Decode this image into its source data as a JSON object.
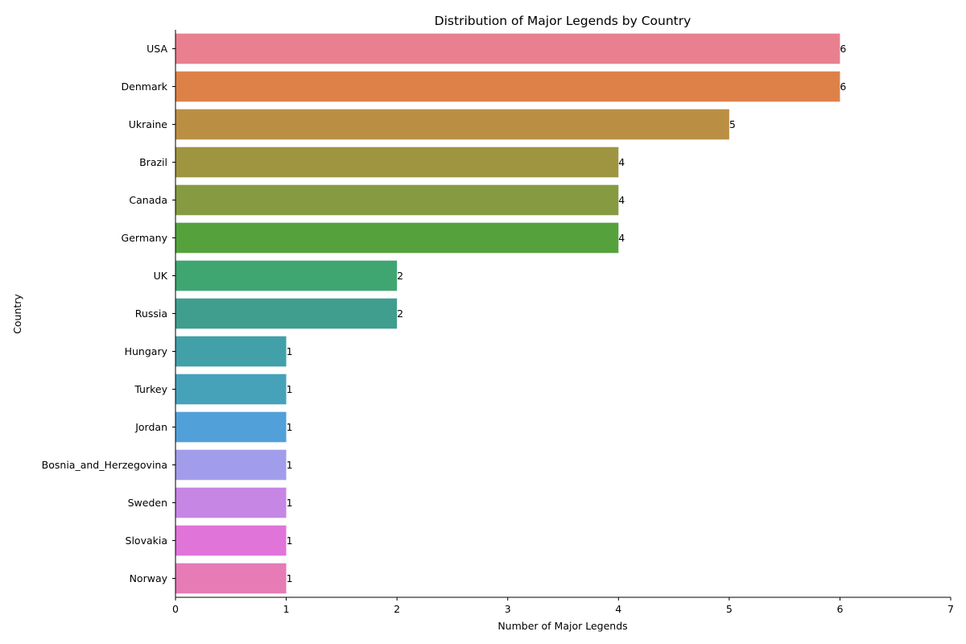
{
  "chart_data": {
    "type": "bar",
    "orientation": "horizontal",
    "title": "Distribution of Major Legends by Country",
    "xlabel": "Number of Major Legends",
    "ylabel": "Country",
    "xlim": [
      0,
      7
    ],
    "xticks": [
      0,
      1,
      2,
      3,
      4,
      5,
      6,
      7
    ],
    "grid": false,
    "categories": [
      "USA",
      "Denmark",
      "Ukraine",
      "Brazil",
      "Canada",
      "Germany",
      "UK",
      "Russia",
      "Hungary",
      "Turkey",
      "Jordan",
      "Bosnia_and_Herzegovina",
      "Sweden",
      "Slovakia",
      "Norway"
    ],
    "values": [
      6,
      6,
      5,
      4,
      4,
      4,
      2,
      2,
      1,
      1,
      1,
      1,
      1,
      1,
      1
    ],
    "colors": [
      "#e8808f",
      "#dd8148",
      "#bb8f43",
      "#9f9540",
      "#869a41",
      "#55a23d",
      "#3fa671",
      "#409e8f",
      "#42a0a8",
      "#46a2b9",
      "#52a0d9",
      "#a29dea",
      "#c586e4",
      "#e074d9",
      "#e67bb6"
    ]
  }
}
